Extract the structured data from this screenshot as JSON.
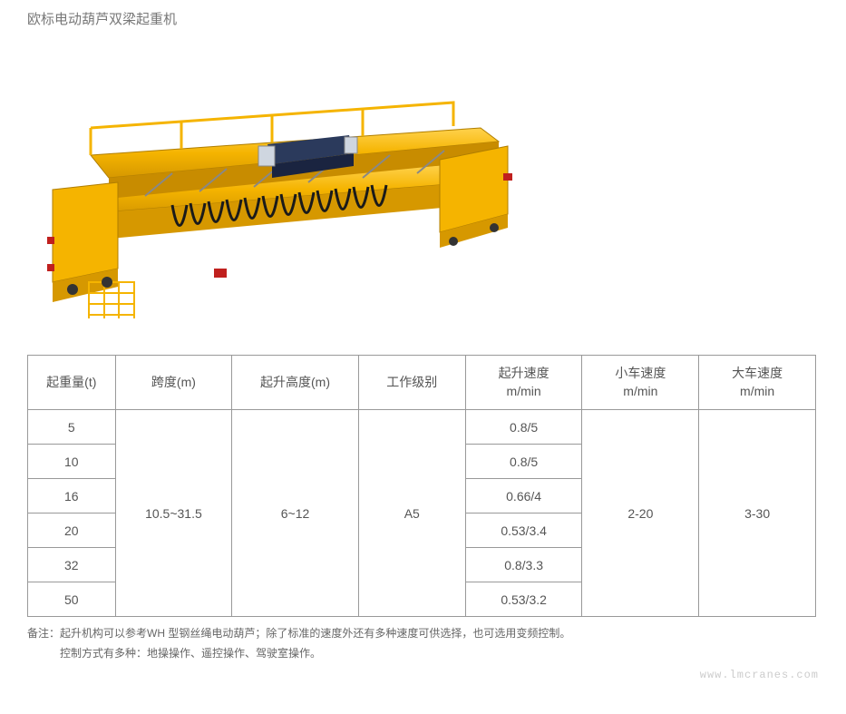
{
  "title": "欧标电动葫芦双梁起重机",
  "illustration": {
    "main_color": "#f5b400",
    "shadow_color": "#d69800",
    "highlight_color": "#ffd24d",
    "hoist_color": "#2b3a5c",
    "hoist_light": "#cfd6e0",
    "cable_color": "#1a1a1a",
    "end_cap_color": "#c0201e",
    "rail_color": "#888888",
    "background": "#ffffff"
  },
  "table": {
    "columns": [
      "起重量(t)",
      "跨度(m)",
      "起升高度(m)",
      "工作级别",
      "起升速度\nm/min",
      "小车速度\nm/min",
      "大车速度\nm/min"
    ],
    "column_widths": [
      "90px",
      "120px",
      "130px",
      "110px",
      "120px",
      "120px",
      "120px"
    ],
    "rows": [
      {
        "capacity": "5",
        "speed": "0.8/5"
      },
      {
        "capacity": "10",
        "speed": "0.8/5"
      },
      {
        "capacity": "16",
        "speed": "0.66/4"
      },
      {
        "capacity": "20",
        "speed": "0.53/3.4"
      },
      {
        "capacity": "32",
        "speed": "0.8/3.3"
      },
      {
        "capacity": "50",
        "speed": "0.53/3.2"
      }
    ],
    "merged": {
      "span": "10.5~31.5",
      "height": "6~12",
      "duty": "A5",
      "trolley_speed": "2-20",
      "travel_speed": "3-30"
    },
    "border_color": "#999999",
    "text_color": "#555555",
    "header_fontsize": 14,
    "cell_fontsize": 14
  },
  "notes": {
    "prefix": "备注：",
    "line1": "起升机构可以参考WH 型钢丝绳电动葫芦；除了标准的速度外还有多种速度可供选择，也可选用变频控制。",
    "line2": "控制方式有多种：地操操作、遥控操作、驾驶室操作。"
  },
  "watermark": "www.lmcranes.com"
}
